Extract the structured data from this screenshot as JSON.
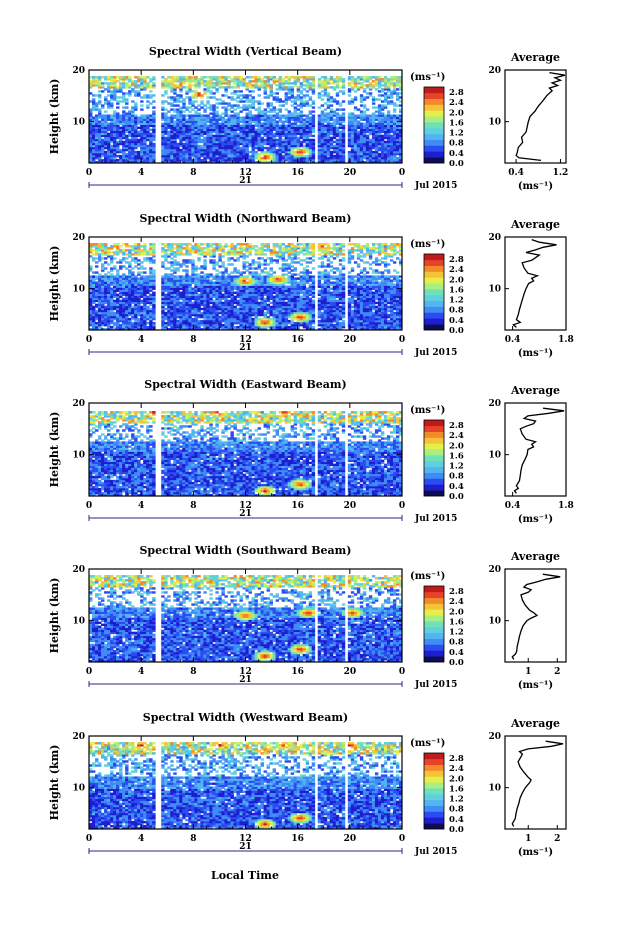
{
  "figure": {
    "xlabel": "Local Time",
    "ylabel": "Height (km)",
    "date_label": "Jul 2015",
    "day_label": "21",
    "colorbar_unit": "(ms⁻¹)",
    "avg_title": "Average",
    "avg_unit": "(ms⁻¹)"
  },
  "colorbar": {
    "colors": [
      "#0d0d55",
      "#1e1ed0",
      "#2a4cf0",
      "#3f8cf5",
      "#52b4f0",
      "#60d0e0",
      "#70e0b8",
      "#a8ee80",
      "#e6ef4a",
      "#f6c23a",
      "#f28a2a",
      "#e7422a",
      "#c01a1a"
    ],
    "ticks": [
      "0.0",
      "0.4",
      "0.8",
      "1.2",
      "1.6",
      "2.0",
      "2.4",
      "2.8"
    ],
    "range": [
      0,
      3.0
    ]
  },
  "chart_data": [
    {
      "type": "heatmap",
      "title": "Spectral Width (Vertical Beam)",
      "x_ticks": [
        "0",
        "4",
        "8",
        "12",
        "16",
        "20",
        "0"
      ],
      "xlim": [
        0,
        24
      ],
      "ylim": [
        2,
        20
      ],
      "y_ticks": [
        "20",
        "10"
      ],
      "gaps": [
        [
          5.1,
          5.6
        ],
        [
          17.3,
          17.6
        ],
        [
          19.6,
          19.9
        ]
      ],
      "upper_data_top": 19.0,
      "lower_layer_top": 11.5,
      "high_spots": [
        [
          13.5,
          3.2
        ],
        [
          16.2,
          4.2
        ],
        [
          8.5,
          15.3
        ]
      ],
      "average": {
        "title": "Average",
        "xlim": [
          0.2,
          1.3
        ],
        "x_ticks": [
          "0.4",
          "1.2"
        ],
        "y_ticks": [
          "20",
          "10"
        ],
        "profile": [
          [
            2.5,
            0.85
          ],
          [
            3,
            0.45
          ],
          [
            3.5,
            0.4
          ],
          [
            4,
            0.42
          ],
          [
            5,
            0.44
          ],
          [
            6,
            0.52
          ],
          [
            7,
            0.5
          ],
          [
            8,
            0.58
          ],
          [
            9,
            0.6
          ],
          [
            10,
            0.62
          ],
          [
            11,
            0.65
          ],
          [
            12,
            0.74
          ],
          [
            13,
            0.8
          ],
          [
            14,
            0.88
          ],
          [
            15,
            0.95
          ],
          [
            16,
            1.05
          ],
          [
            16.5,
            1.0
          ],
          [
            17,
            1.15
          ],
          [
            17.5,
            1.05
          ],
          [
            18,
            1.2
          ],
          [
            18.5,
            1.1
          ],
          [
            19,
            1.28
          ],
          [
            19.5,
            1.0
          ]
        ]
      }
    },
    {
      "type": "heatmap",
      "title": "Spectral Width (Northward Beam)",
      "x_ticks": [
        "0",
        "4",
        "8",
        "12",
        "16",
        "20",
        "0"
      ],
      "xlim": [
        0,
        24
      ],
      "ylim": [
        2,
        20
      ],
      "y_ticks": [
        "20",
        "10"
      ],
      "gaps": [
        [
          5.1,
          5.6
        ],
        [
          17.3,
          17.6
        ],
        [
          19.6,
          19.9
        ]
      ],
      "upper_data_top": 18.8,
      "lower_layer_top": 12.5,
      "high_spots": [
        [
          13.5,
          3.5
        ],
        [
          16.2,
          4.5
        ],
        [
          12,
          11.5
        ],
        [
          14.5,
          11.8
        ],
        [
          18,
          18.2
        ]
      ],
      "average": {
        "title": "Average",
        "xlim": [
          0.2,
          1.8
        ],
        "x_ticks": [
          "0.4",
          "1.8"
        ],
        "y_ticks": [
          "20",
          "10"
        ],
        "profile": [
          [
            2.5,
            0.5
          ],
          [
            3,
            0.42
          ],
          [
            3.5,
            0.6
          ],
          [
            4,
            0.5
          ],
          [
            5,
            0.55
          ],
          [
            6,
            0.58
          ],
          [
            7,
            0.62
          ],
          [
            8,
            0.66
          ],
          [
            9,
            0.7
          ],
          [
            10,
            0.75
          ],
          [
            11,
            0.82
          ],
          [
            11.5,
            0.95
          ],
          [
            12,
            0.9
          ],
          [
            12.5,
            1.05
          ],
          [
            13,
            0.8
          ],
          [
            14,
            0.7
          ],
          [
            15,
            0.65
          ],
          [
            15.5,
            0.9
          ],
          [
            16,
            1.0
          ],
          [
            16.5,
            1.1
          ],
          [
            17,
            0.75
          ],
          [
            17.5,
            1.0
          ],
          [
            18,
            1.2
          ],
          [
            18.5,
            1.55
          ],
          [
            19,
            1.1
          ],
          [
            19.5,
            0.9
          ]
        ]
      }
    },
    {
      "type": "heatmap",
      "title": "Spectral Width (Eastward Beam)",
      "x_ticks": [
        "0",
        "4",
        "8",
        "12",
        "16",
        "20",
        "0"
      ],
      "xlim": [
        0,
        24
      ],
      "ylim": [
        2,
        20
      ],
      "y_ticks": [
        "20",
        "10"
      ],
      "gaps": [
        [
          5.1,
          5.6
        ],
        [
          17.3,
          17.6
        ],
        [
          19.6,
          19.9
        ]
      ],
      "upper_data_top": 18.6,
      "lower_layer_top": 12.5,
      "high_spots": [
        [
          13.5,
          3.0
        ],
        [
          16.2,
          4.3
        ],
        [
          5,
          18.2
        ],
        [
          10,
          18.2
        ],
        [
          15,
          18.2
        ]
      ],
      "average": {
        "title": "Average",
        "xlim": [
          0.2,
          1.8
        ],
        "x_ticks": [
          "0.4",
          "1.8"
        ],
        "y_ticks": [
          "20",
          "10"
        ],
        "profile": [
          [
            2.5,
            0.5
          ],
          [
            3,
            0.45
          ],
          [
            3.5,
            0.55
          ],
          [
            4,
            0.5
          ],
          [
            5,
            0.58
          ],
          [
            6,
            0.6
          ],
          [
            7,
            0.62
          ],
          [
            8,
            0.65
          ],
          [
            9,
            0.72
          ],
          [
            10,
            0.78
          ],
          [
            11,
            0.8
          ],
          [
            11.5,
            0.95
          ],
          [
            12,
            0.9
          ],
          [
            12.5,
            1.0
          ],
          [
            13,
            0.75
          ],
          [
            14,
            0.65
          ],
          [
            15,
            0.6
          ],
          [
            15.5,
            0.75
          ],
          [
            16,
            0.95
          ],
          [
            16.5,
            1.0
          ],
          [
            17,
            0.7
          ],
          [
            17.5,
            0.8
          ],
          [
            18,
            1.35
          ],
          [
            18.5,
            1.75
          ],
          [
            19,
            1.2
          ]
        ]
      }
    },
    {
      "type": "heatmap",
      "title": "Spectral Width (Southward Beam)",
      "x_ticks": [
        "0",
        "4",
        "8",
        "12",
        "16",
        "20",
        "0"
      ],
      "xlim": [
        0,
        24
      ],
      "ylim": [
        2,
        20
      ],
      "y_ticks": [
        "20",
        "10"
      ],
      "gaps": [
        [
          5.1,
          5.6
        ],
        [
          17.3,
          17.6
        ],
        [
          19.6,
          19.9
        ]
      ],
      "upper_data_top": 19.0,
      "lower_layer_top": 12.5,
      "high_spots": [
        [
          13.5,
          3.2
        ],
        [
          16.2,
          4.5
        ],
        [
          16.8,
          11.5
        ],
        [
          12,
          11.0
        ],
        [
          20.2,
          11.5
        ]
      ],
      "average": {
        "title": "Average",
        "xlim": [
          0.2,
          2.3
        ],
        "x_ticks": [
          "1",
          "2"
        ],
        "y_ticks": [
          "20",
          "10"
        ],
        "profile": [
          [
            2.5,
            0.5
          ],
          [
            3,
            0.45
          ],
          [
            3.5,
            0.55
          ],
          [
            4,
            0.6
          ],
          [
            5,
            0.62
          ],
          [
            6,
            0.66
          ],
          [
            7,
            0.7
          ],
          [
            8,
            0.75
          ],
          [
            9,
            0.82
          ],
          [
            10,
            0.95
          ],
          [
            10.5,
            1.1
          ],
          [
            11,
            1.3
          ],
          [
            11.5,
            1.2
          ],
          [
            12,
            1.05
          ],
          [
            13,
            0.9
          ],
          [
            14,
            0.8
          ],
          [
            15,
            0.75
          ],
          [
            15.5,
            1.0
          ],
          [
            16,
            1.1
          ],
          [
            16.5,
            0.85
          ],
          [
            17,
            0.95
          ],
          [
            17.5,
            1.3
          ],
          [
            18,
            1.6
          ],
          [
            18.5,
            2.1
          ],
          [
            19,
            1.5
          ]
        ]
      }
    },
    {
      "type": "heatmap",
      "title": "Spectral Width (Westward Beam)",
      "x_ticks": [
        "0",
        "4",
        "8",
        "12",
        "16",
        "20",
        "0"
      ],
      "xlim": [
        0,
        24
      ],
      "ylim": [
        2,
        20
      ],
      "y_ticks": [
        "20",
        "10"
      ],
      "gaps": [
        [
          5.1,
          5.6
        ],
        [
          17.3,
          17.6
        ],
        [
          19.6,
          19.9
        ]
      ],
      "upper_data_top": 18.8,
      "lower_layer_top": 12.0,
      "high_spots": [
        [
          13.5,
          3.0
        ],
        [
          16.2,
          4.2
        ],
        [
          4,
          18.2
        ],
        [
          10,
          18.3
        ],
        [
          15,
          18.2
        ],
        [
          20,
          18.2
        ]
      ],
      "average": {
        "title": "Average",
        "xlim": [
          0.2,
          2.3
        ],
        "x_ticks": [
          "1",
          "2"
        ],
        "y_ticks": [
          "20",
          "10"
        ],
        "profile": [
          [
            2.5,
            0.5
          ],
          [
            3,
            0.45
          ],
          [
            3.5,
            0.5
          ],
          [
            4,
            0.55
          ],
          [
            5,
            0.58
          ],
          [
            6,
            0.62
          ],
          [
            7,
            0.68
          ],
          [
            8,
            0.72
          ],
          [
            9,
            0.8
          ],
          [
            10,
            0.9
          ],
          [
            11,
            1.05
          ],
          [
            11.5,
            1.1
          ],
          [
            12,
            1.0
          ],
          [
            13,
            0.85
          ],
          [
            14,
            0.72
          ],
          [
            15,
            0.65
          ],
          [
            16,
            0.75
          ],
          [
            16.5,
            0.8
          ],
          [
            17,
            0.7
          ],
          [
            17.5,
            1.0
          ],
          [
            18,
            1.8
          ],
          [
            18.5,
            2.2
          ],
          [
            19,
            1.6
          ]
        ]
      }
    }
  ]
}
